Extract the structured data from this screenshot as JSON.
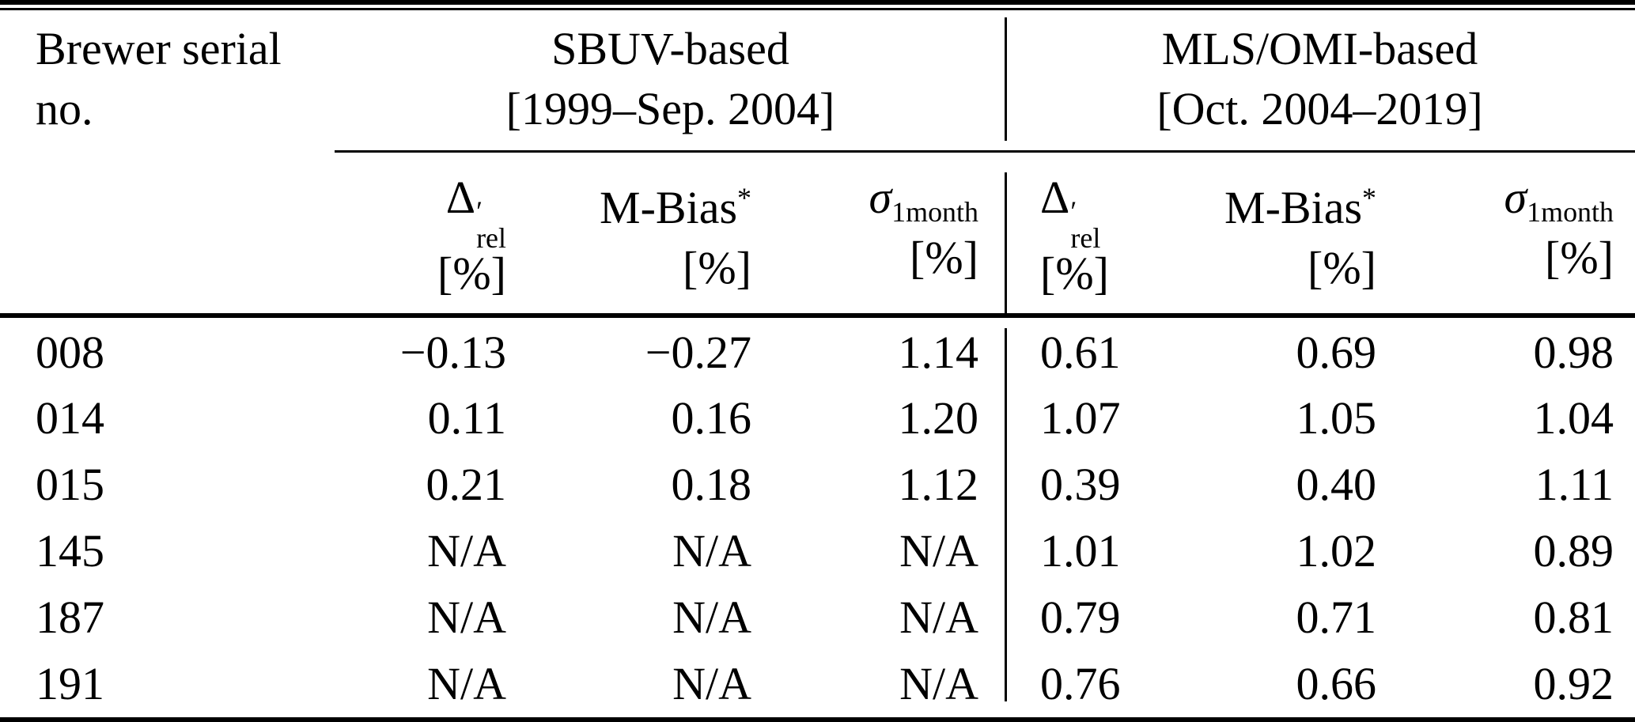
{
  "page": {
    "background": "#ffffff",
    "text_color": "#000000"
  },
  "table": {
    "corner": {
      "line1": "Brewer serial",
      "line2": "no."
    },
    "groups": [
      {
        "title": "SBUV-based",
        "period": "[1999–Sep. 2004]"
      },
      {
        "title": "MLS/OMI-based",
        "period": "[Oct. 2004–2019]"
      }
    ],
    "subheader": {
      "delta": {
        "base": "Δ",
        "sup": "′",
        "sub": "rel"
      },
      "mbias": {
        "base": "M-Bias",
        "sup": "*"
      },
      "sigma": {
        "base": "σ",
        "sub": "1month"
      },
      "unit": "[%]"
    },
    "rows": [
      {
        "serial": "008",
        "sbuv": [
          "−0.13",
          "−0.27",
          "1.14"
        ],
        "mls_omi": [
          "0.61",
          "0.69",
          "0.98"
        ]
      },
      {
        "serial": "014",
        "sbuv": [
          "0.11",
          "0.16",
          "1.20"
        ],
        "mls_omi": [
          "1.07",
          "1.05",
          "1.04"
        ]
      },
      {
        "serial": "015",
        "sbuv": [
          "0.21",
          "0.18",
          "1.12"
        ],
        "mls_omi": [
          "0.39",
          "0.40",
          "1.11"
        ]
      },
      {
        "serial": "145",
        "sbuv": [
          "N/A",
          "N/A",
          "N/A"
        ],
        "mls_omi": [
          "1.01",
          "1.02",
          "0.89"
        ]
      },
      {
        "serial": "187",
        "sbuv": [
          "N/A",
          "N/A",
          "N/A"
        ],
        "mls_omi": [
          "0.79",
          "0.71",
          "0.81"
        ]
      },
      {
        "serial": "191",
        "sbuv": [
          "N/A",
          "N/A",
          "N/A"
        ],
        "mls_omi": [
          "0.76",
          "0.66",
          "0.92"
        ]
      }
    ]
  }
}
